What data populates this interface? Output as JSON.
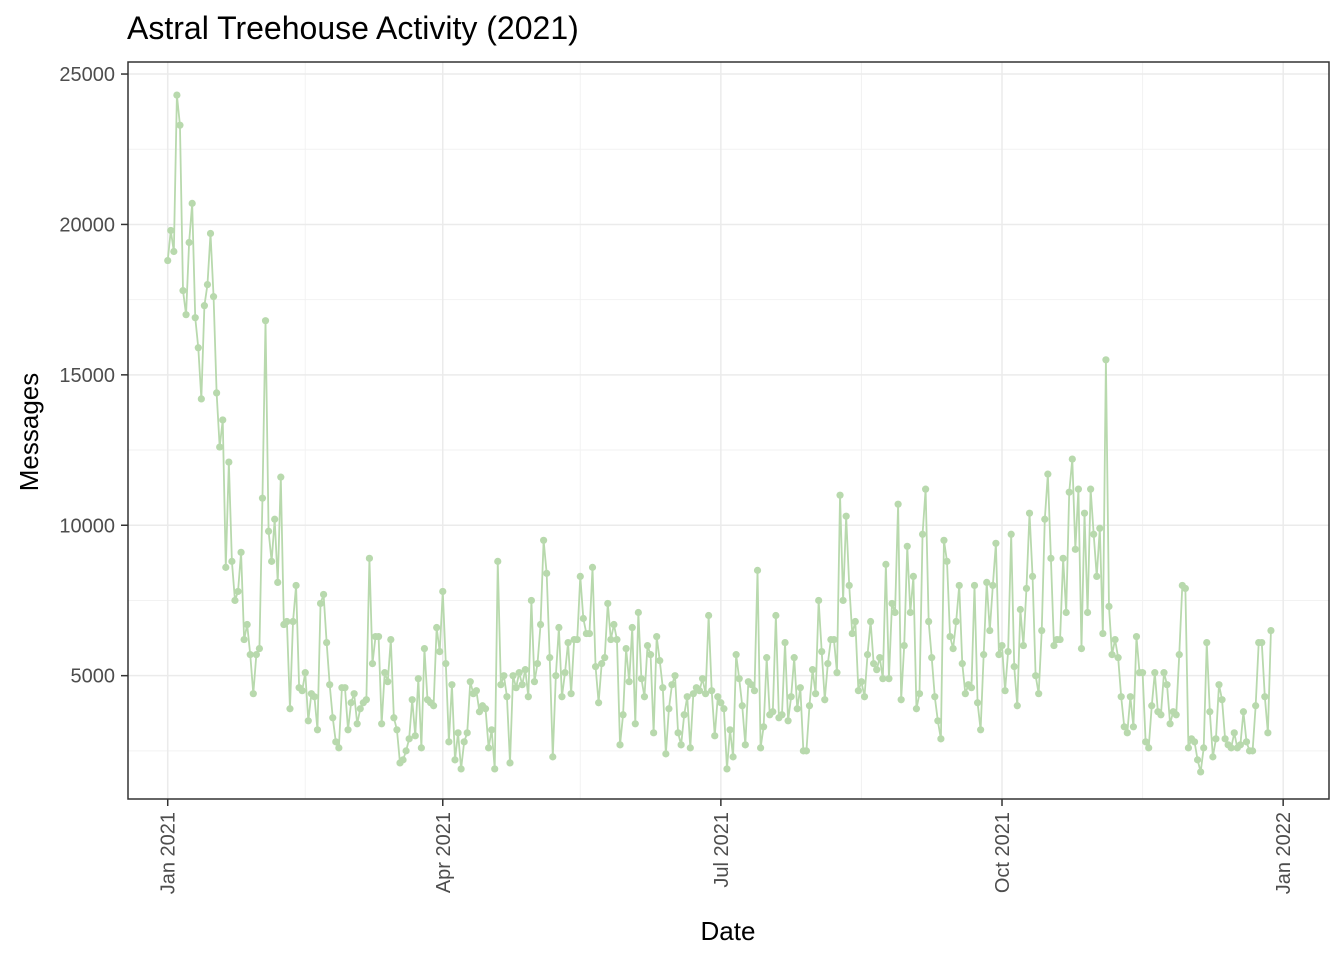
{
  "chart_data": {
    "type": "line",
    "title": "Astral Treehouse Activity (2021)",
    "xlabel": "Date",
    "ylabel": "Messages",
    "x_range": [
      "2020-12-19",
      "2022-01-16"
    ],
    "ylim": [
      900,
      25400
    ],
    "y_ticks": [
      5000,
      10000,
      15000,
      20000,
      25000
    ],
    "x_ticks": [
      {
        "date": "2021-01-01",
        "label": "Jan 2021"
      },
      {
        "date": "2021-04-01",
        "label": "Apr 2021"
      },
      {
        "date": "2021-07-01",
        "label": "Jul 2021"
      },
      {
        "date": "2021-10-01",
        "label": "Oct 2021"
      },
      {
        "date": "2022-01-01",
        "label": "Jan 2022"
      }
    ],
    "x_minor_ticks": [
      "2021-02-15",
      "2021-05-16",
      "2021-08-16",
      "2021-11-16"
    ],
    "y_minor_ticks": [
      2500,
      7500,
      12500,
      17500,
      22500
    ],
    "grid": true,
    "series_color": "#b8d9ad",
    "start_date": "2021-01-01",
    "series": [
      {
        "values": [
          18800,
          19800,
          19100,
          24300,
          23300,
          17800,
          17000,
          19400,
          20700,
          16900,
          15900,
          14200,
          17300,
          18000,
          19700,
          17600,
          14400,
          12600,
          13500,
          8600,
          12100,
          8800,
          7500,
          7800,
          9100,
          6200,
          6700,
          5700,
          4400,
          5700,
          5900,
          10900,
          16800,
          9800,
          8800,
          10200,
          8100,
          11600,
          6700,
          6800,
          3900,
          6800,
          8000,
          4600,
          4500,
          5100,
          3500,
          4400,
          4300,
          3200,
          7400,
          7700,
          6100,
          4700,
          3600,
          2800,
          2600,
          4600,
          4600,
          3200,
          4100,
          4400,
          3400,
          3900,
          4100,
          4200,
          8900,
          5400,
          6300,
          6300,
          3400,
          5100,
          4800,
          6200,
          3600,
          3200,
          2100,
          2200,
          2500,
          2900,
          4200,
          3000,
          4900,
          2600,
          5900,
          4200,
          4100,
          4000,
          6600,
          5800,
          7800,
          5400,
          2800,
          4700,
          2200,
          3100,
          1900,
          2800,
          3100,
          4800,
          4400,
          4500,
          3800,
          4000,
          3900,
          2600,
          3200,
          1900,
          8800,
          4700,
          5000,
          4300,
          2100,
          5000,
          4600,
          5100,
          4700,
          5200,
          4300,
          7500,
          4800,
          5400,
          6700,
          9500,
          8400,
          5600,
          2300,
          5000,
          6600,
          4300,
          5100,
          6100,
          4400,
          6200,
          6200,
          8300,
          6900,
          6400,
          6400,
          8600,
          5300,
          4100,
          5400,
          5600,
          7400,
          6200,
          6700,
          6200,
          2700,
          3700,
          5900,
          4800,
          6600,
          3400,
          7100,
          4900,
          4300,
          6000,
          5700,
          3100,
          6300,
          5500,
          4600,
          2400,
          3900,
          4700,
          5000,
          3100,
          2700,
          3700,
          4300,
          2600,
          4400,
          4600,
          4500,
          4900,
          4400,
          7000,
          4500,
          3000,
          4300,
          4100,
          3900,
          1900,
          3200,
          2300,
          5700,
          4900,
          4000,
          2700,
          4800,
          4700,
          4500,
          8500,
          2600,
          3300,
          5600,
          3700,
          3800,
          7000,
          3600,
          3700,
          6100,
          3500,
          4300,
          5600,
          3900,
          4600,
          2500,
          2500,
          4000,
          5200,
          4400,
          7500,
          5800,
          4200,
          5400,
          6200,
          6200,
          5100,
          11000,
          7500,
          10300,
          8000,
          6400,
          6800,
          4500,
          4800,
          4300,
          5700,
          6800,
          5400,
          5200,
          5600,
          4900,
          8700,
          4900,
          7400,
          7100,
          10700,
          4200,
          6000,
          9300,
          7100,
          8300,
          3900,
          4400,
          9700,
          11200,
          6800,
          5600,
          4300,
          3500,
          2900,
          9500,
          8800,
          6300,
          5900,
          6800,
          8000,
          5400,
          4400,
          4700,
          4600,
          8000,
          4100,
          3200,
          5700,
          8100,
          6500,
          8000,
          9400,
          5700,
          6000,
          4500,
          5800,
          9700,
          5300,
          4000,
          7200,
          6000,
          7900,
          10400,
          8300,
          5000,
          4400,
          6500,
          10200,
          11700,
          8900,
          6000,
          6200,
          6200,
          8900,
          7100,
          11100,
          12200,
          9200,
          11200,
          5900,
          10400,
          7100,
          11200,
          9700,
          8300,
          9900,
          6400,
          15500,
          7300,
          5700,
          6200,
          5600,
          4300,
          3300,
          3100,
          4300,
          3300,
          6300,
          5100,
          5100,
          2800,
          2600,
          4000,
          5100,
          3800,
          3700,
          5100,
          4700,
          3400,
          3800,
          3700,
          5700,
          8000,
          7900,
          2600,
          2900,
          2800,
          2200,
          1800,
          2600,
          6100,
          3800,
          2300,
          2900,
          4700,
          4200,
          2900,
          2700,
          2600,
          3100,
          2600,
          2700,
          3800,
          2800,
          2500,
          2500,
          4000,
          6100,
          6100,
          4300,
          3100,
          6500
        ]
      }
    ]
  }
}
